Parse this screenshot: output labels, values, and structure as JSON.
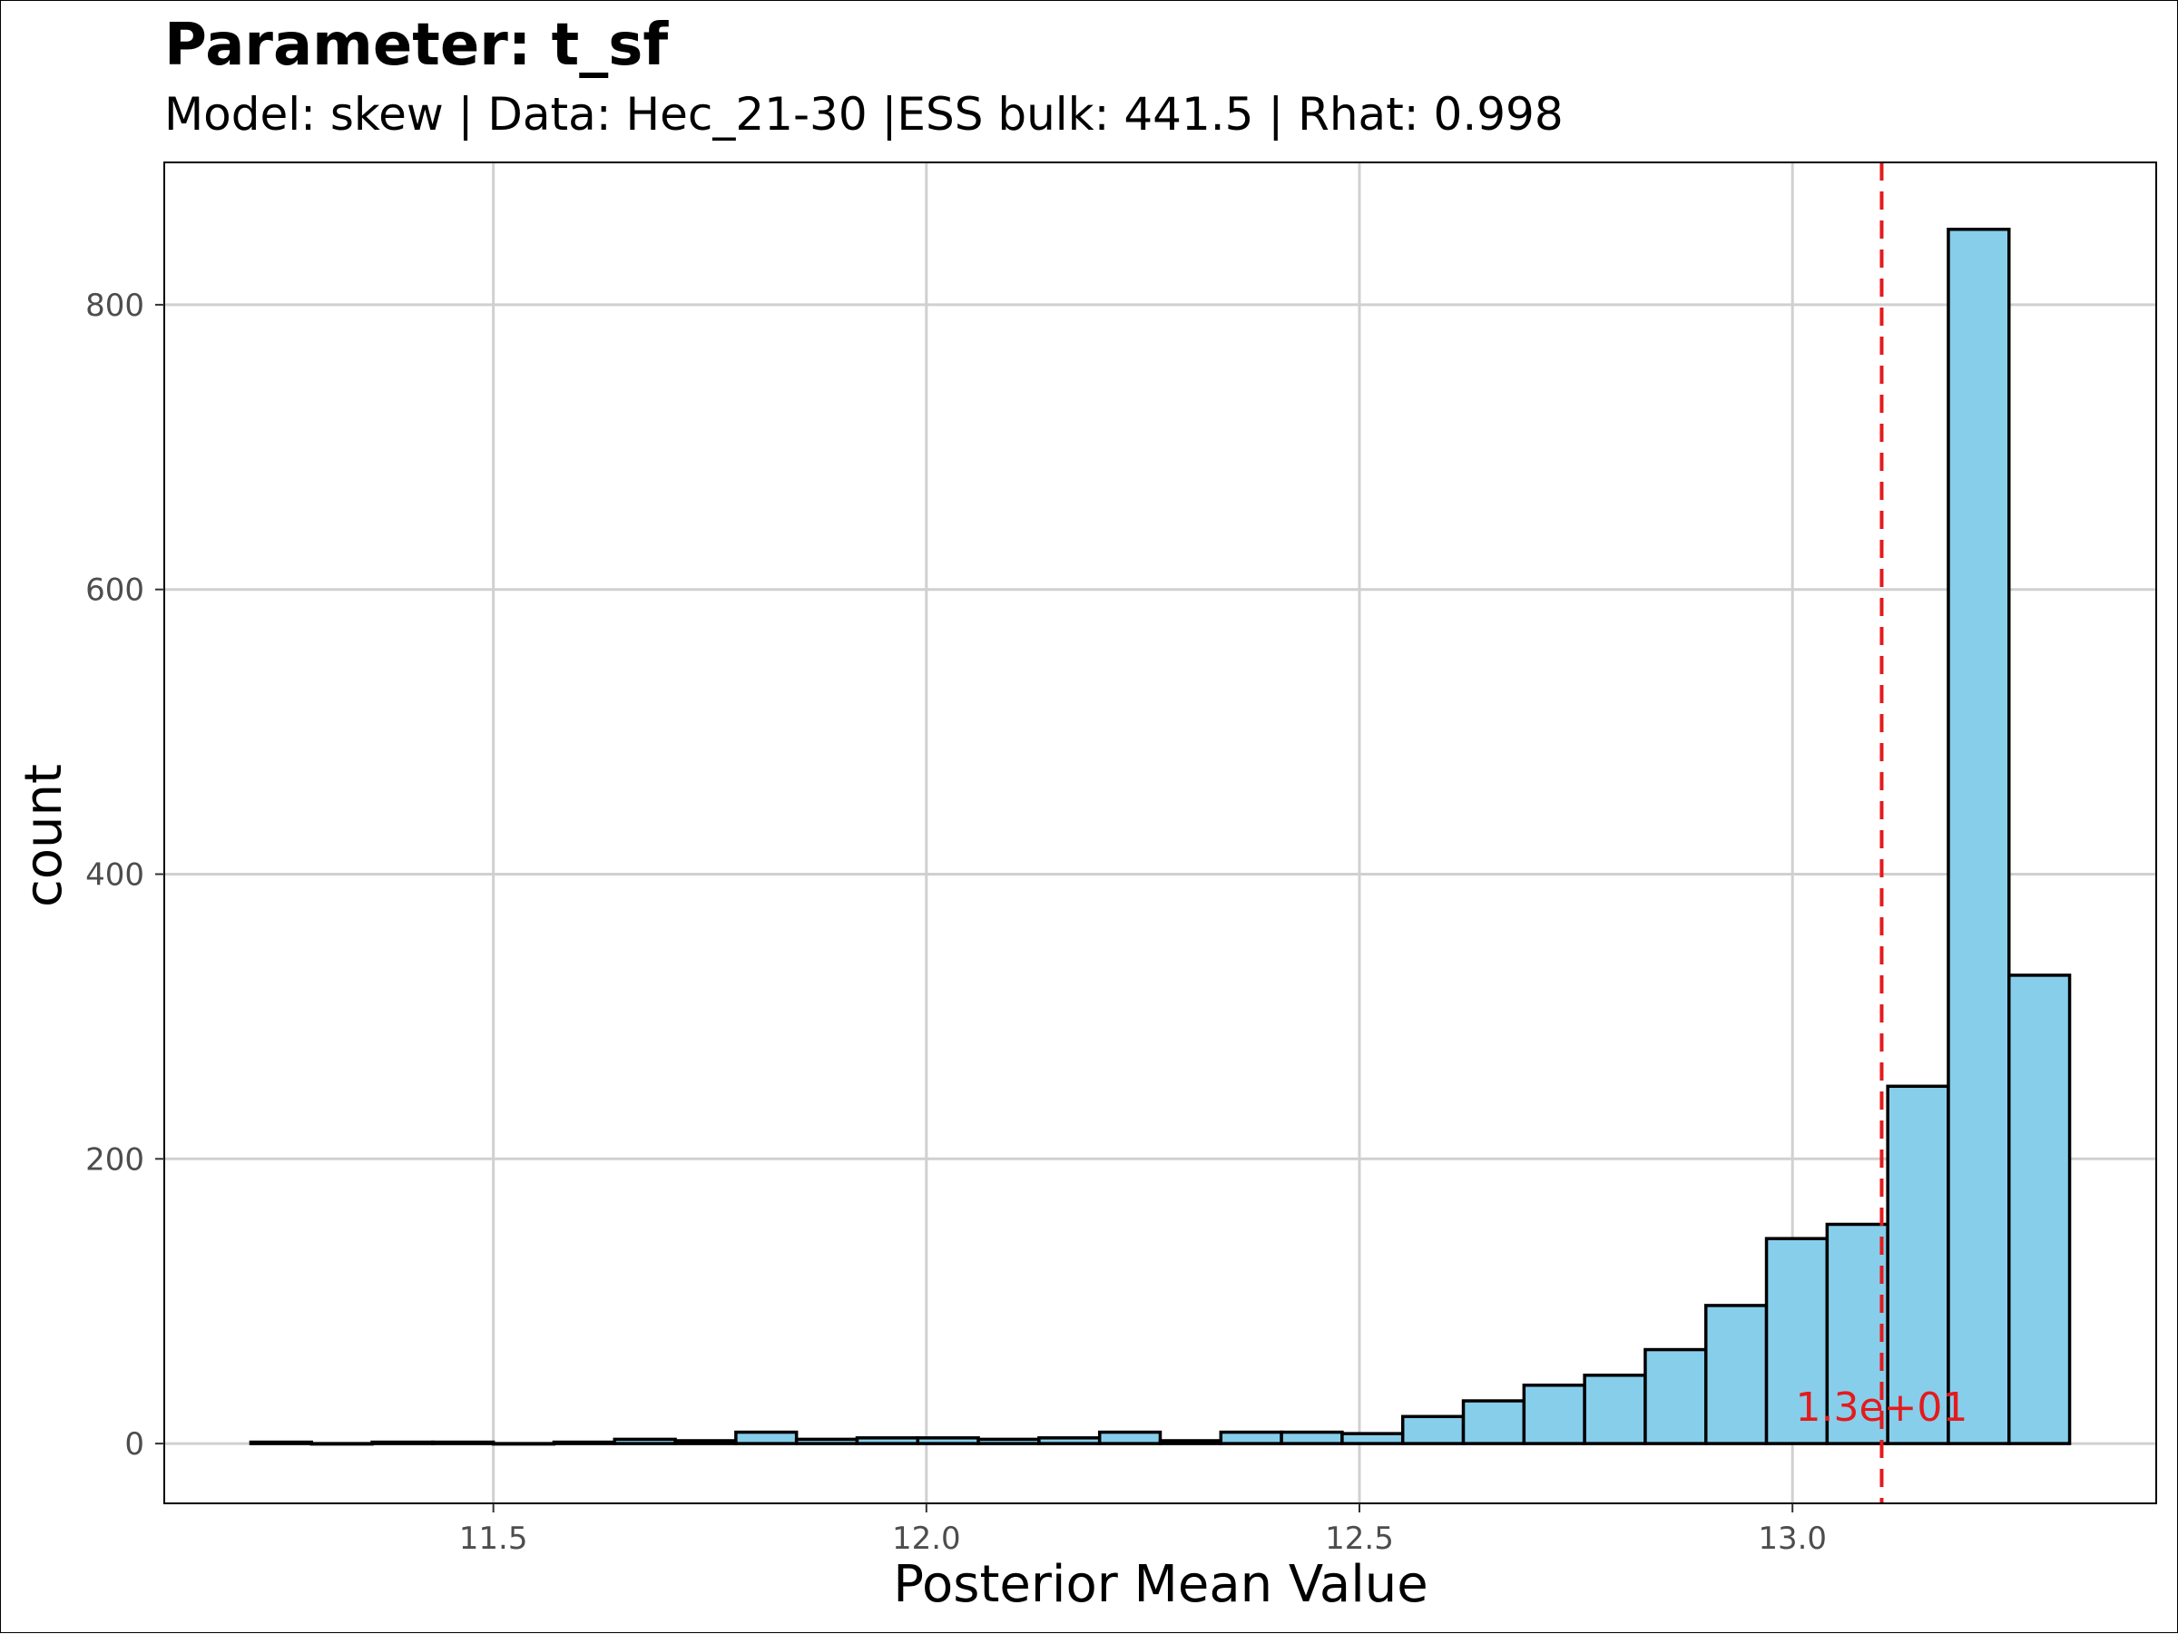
{
  "colors": {
    "bar_fill": "#87CEEB",
    "bar_stroke": "#000000",
    "grid": "#d0d0d0",
    "ref_line": "#e41a1c",
    "tick_text": "#4d4d4d"
  },
  "chart_data": {
    "type": "bar",
    "title": "Parameter: t_sf",
    "subtitle": "Model: skew | Data: Hec_21-30 |ESS bulk: 441.5 | Rhat: 0.998",
    "xlabel": "Posterior Mean Value",
    "ylabel": "count",
    "xlim": [
      11.12,
      13.42
    ],
    "ylim": [
      -42,
      900
    ],
    "x_ticks": [
      11.5,
      12.0,
      12.5,
      13.0
    ],
    "x_tick_labels": [
      "11.5",
      "12.0",
      "12.5",
      "13.0"
    ],
    "y_ticks": [
      0,
      200,
      400,
      600,
      800
    ],
    "y_tick_labels": [
      "0",
      "200",
      "400",
      "600",
      "800"
    ],
    "grid": true,
    "bin_width": 0.07,
    "bins": [
      {
        "x0": 11.22,
        "x1": 11.29,
        "count": 1
      },
      {
        "x0": 11.29,
        "x1": 11.36,
        "count": 0
      },
      {
        "x0": 11.36,
        "x1": 11.43,
        "count": 1
      },
      {
        "x0": 11.43,
        "x1": 11.5,
        "count": 1
      },
      {
        "x0": 11.5,
        "x1": 11.57,
        "count": 0
      },
      {
        "x0": 11.57,
        "x1": 11.64,
        "count": 1
      },
      {
        "x0": 11.64,
        "x1": 11.71,
        "count": 3
      },
      {
        "x0": 11.71,
        "x1": 11.78,
        "count": 2
      },
      {
        "x0": 11.78,
        "x1": 11.85,
        "count": 8
      },
      {
        "x0": 11.85,
        "x1": 11.92,
        "count": 3
      },
      {
        "x0": 11.92,
        "x1": 11.99,
        "count": 4
      },
      {
        "x0": 11.99,
        "x1": 12.06,
        "count": 4
      },
      {
        "x0": 12.06,
        "x1": 12.13,
        "count": 3
      },
      {
        "x0": 12.13,
        "x1": 12.2,
        "count": 4
      },
      {
        "x0": 12.2,
        "x1": 12.27,
        "count": 8
      },
      {
        "x0": 12.27,
        "x1": 12.34,
        "count": 2
      },
      {
        "x0": 12.34,
        "x1": 12.41,
        "count": 8
      },
      {
        "x0": 12.41,
        "x1": 12.48,
        "count": 8
      },
      {
        "x0": 12.48,
        "x1": 12.55,
        "count": 7
      },
      {
        "x0": 12.55,
        "x1": 12.62,
        "count": 19
      },
      {
        "x0": 12.62,
        "x1": 12.69,
        "count": 30
      },
      {
        "x0": 12.69,
        "x1": 12.76,
        "count": 41
      },
      {
        "x0": 12.76,
        "x1": 12.83,
        "count": 48
      },
      {
        "x0": 12.83,
        "x1": 12.9,
        "count": 66
      },
      {
        "x0": 12.9,
        "x1": 12.97,
        "count": 97
      },
      {
        "x0": 12.97,
        "x1": 13.04,
        "count": 144
      },
      {
        "x0": 13.04,
        "x1": 13.11,
        "count": 154
      },
      {
        "x0": 13.11,
        "x1": 13.18,
        "count": 251
      },
      {
        "x0": 13.18,
        "x1": 13.25,
        "count": 853
      },
      {
        "x0": 13.25,
        "x1": 13.32,
        "count": 329
      }
    ],
    "reference_line": {
      "x": 13.103,
      "label": "1.3e+01",
      "style": "dashed"
    }
  }
}
